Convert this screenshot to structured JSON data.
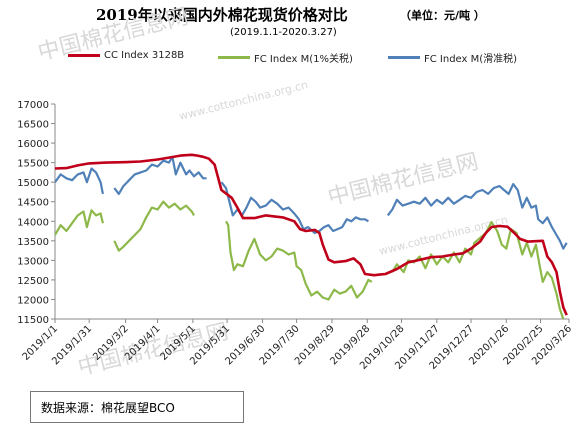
{
  "header": {
    "title": "2019年以来国内外棉花现货价格对比",
    "unit": "（单位：元/吨 ）",
    "subtitle": "(2019.1.1-2020.3.27)"
  },
  "footer": {
    "source": "数据来源：棉花展望BCO"
  },
  "watermark": {
    "text": "中国棉花信息网",
    "url": "www.cottonchina.org.cn"
  },
  "chart_data": {
    "type": "line",
    "ylim": [
      11500,
      17000
    ],
    "yticks": [
      "11500",
      "12000",
      "12500",
      "13000",
      "13500",
      "14000",
      "14500",
      "15000",
      "15500",
      "16000",
      "16500",
      "17000"
    ],
    "xlim": [
      0,
      451
    ],
    "xtick_positions": [
      0,
      30,
      62,
      90,
      121,
      151,
      182,
      212,
      243,
      274,
      304,
      335,
      365,
      396,
      426,
      451
    ],
    "xtick_labels": [
      "2019/1/1",
      "2019/1/31",
      "2019/3/2",
      "2019/4/1",
      "2019/5/1",
      "2019/5/31",
      "2019/6/30",
      "2019/7/30",
      "2019/8/29",
      "2019/9/28",
      "2019/10/28",
      "2019/11/27",
      "2019/12/27",
      "2020/1/26",
      "2020/2/25",
      "2020/3/26"
    ],
    "grid": false,
    "legend_position": "top",
    "series": [
      {
        "name": "CC Index 3128B",
        "color": "#c0001a",
        "segments": [
          [
            [
              0,
              15350
            ],
            [
              10,
              15360
            ],
            [
              20,
              15430
            ],
            [
              30,
              15480
            ],
            [
              45,
              15500
            ],
            [
              60,
              15510
            ],
            [
              75,
              15530
            ],
            [
              90,
              15580
            ],
            [
              100,
              15630
            ],
            [
              110,
              15680
            ],
            [
              120,
              15700
            ],
            [
              125,
              15680
            ],
            [
              130,
              15650
            ],
            [
              135,
              15600
            ],
            [
              140,
              15450
            ],
            [
              146,
              14800
            ],
            [
              155,
              14600
            ],
            [
              160,
              14350
            ],
            [
              165,
              14080
            ],
            [
              175,
              14080
            ],
            [
              185,
              14150
            ],
            [
              200,
              14100
            ],
            [
              210,
              14000
            ],
            [
              215,
              13800
            ],
            [
              220,
              13750
            ],
            [
              228,
              13780
            ],
            [
              232,
              13700
            ],
            [
              235,
              13400
            ],
            [
              240,
              13020
            ],
            [
              245,
              12950
            ],
            [
              255,
              12980
            ],
            [
              262,
              13050
            ],
            [
              268,
              12900
            ],
            [
              272,
              12650
            ],
            [
              280,
              12620
            ],
            [
              290,
              12650
            ],
            [
              300,
              12780
            ],
            [
              310,
              12950
            ],
            [
              318,
              13000
            ],
            [
              330,
              13080
            ],
            [
              340,
              13100
            ],
            [
              350,
              13150
            ],
            [
              358,
              13180
            ],
            [
              365,
              13300
            ],
            [
              373,
              13480
            ],
            [
              378,
              13700
            ],
            [
              383,
              13850
            ],
            [
              390,
              13880
            ],
            [
              397,
              13860
            ],
            [
              403,
              13700
            ],
            [
              408,
              13550
            ],
            [
              415,
              13480
            ],
            [
              428,
              13500
            ],
            [
              432,
              13100
            ],
            [
              436,
              12950
            ],
            [
              440,
              12700
            ],
            [
              443,
              12200
            ],
            [
              446,
              11800
            ],
            [
              449,
              11600
            ]
          ]
        ]
      },
      {
        "name": "FC Index M(1%关税)",
        "color": "#8db84a",
        "segments": [
          [
            [
              0,
              13650
            ],
            [
              5,
              13900
            ],
            [
              10,
              13750
            ],
            [
              15,
              13950
            ],
            [
              20,
              14150
            ],
            [
              25,
              14250
            ],
            [
              28,
              13850
            ],
            [
              32,
              14280
            ],
            [
              36,
              14150
            ],
            [
              40,
              14200
            ],
            [
              42,
              13950
            ]
          ],
          [
            [
              52,
              13500
            ],
            [
              56,
              13250
            ],
            [
              60,
              13350
            ],
            [
              65,
              13500
            ],
            [
              70,
              13650
            ],
            [
              75,
              13800
            ],
            [
              80,
              14100
            ],
            [
              85,
              14350
            ],
            [
              90,
              14300
            ],
            [
              95,
              14500
            ],
            [
              100,
              14350
            ],
            [
              105,
              14450
            ],
            [
              110,
              14300
            ],
            [
              115,
              14400
            ],
            [
              120,
              14250
            ],
            [
              122,
              14150
            ]
          ],
          [
            [
              150,
              14000
            ],
            [
              152,
              13900
            ],
            [
              154,
              13200
            ],
            [
              157,
              12750
            ],
            [
              160,
              12900
            ],
            [
              165,
              12850
            ],
            [
              170,
              13250
            ],
            [
              175,
              13550
            ],
            [
              180,
              13150
            ],
            [
              185,
              13000
            ],
            [
              190,
              13100
            ],
            [
              195,
              13300
            ],
            [
              200,
              13250
            ],
            [
              205,
              13150
            ],
            [
              210,
              13200
            ],
            [
              212,
              12850
            ],
            [
              216,
              12750
            ],
            [
              220,
              12400
            ],
            [
              225,
              12100
            ],
            [
              230,
              12200
            ],
            [
              235,
              12050
            ],
            [
              240,
              12000
            ],
            [
              245,
              12250
            ],
            [
              250,
              12150
            ],
            [
              255,
              12200
            ],
            [
              260,
              12350
            ],
            [
              265,
              12050
            ],
            [
              270,
              12200
            ],
            [
              275,
              12500
            ],
            [
              278,
              12450
            ]
          ],
          [
            [
              296,
              12700
            ],
            [
              300,
              12900
            ],
            [
              306,
              12700
            ],
            [
              310,
              13000
            ],
            [
              315,
              12950
            ],
            [
              320,
              13100
            ],
            [
              325,
              12800
            ],
            [
              330,
              13150
            ],
            [
              335,
              12900
            ],
            [
              340,
              13100
            ],
            [
              345,
              12950
            ],
            [
              350,
              13200
            ],
            [
              355,
              12950
            ],
            [
              360,
              13300
            ],
            [
              365,
              13150
            ],
            [
              368,
              13450
            ],
            [
              372,
              13550
            ],
            [
              378,
              13700
            ],
            [
              383,
              13980
            ],
            [
              388,
              13750
            ],
            [
              392,
              13400
            ],
            [
              396,
              13300
            ],
            [
              400,
              13800
            ],
            [
              405,
              13700
            ],
            [
              410,
              13150
            ],
            [
              414,
              13450
            ],
            [
              418,
              13100
            ],
            [
              422,
              13400
            ],
            [
              425,
              12900
            ],
            [
              428,
              12450
            ],
            [
              432,
              12700
            ],
            [
              436,
              12550
            ],
            [
              440,
              12150
            ],
            [
              443,
              11750
            ],
            [
              446,
              11500
            ]
          ]
        ]
      },
      {
        "name": "FC Index M(滑准税)",
        "color": "#5080b8",
        "segments": [
          [
            [
              0,
              15000
            ],
            [
              5,
              15200
            ],
            [
              10,
              15100
            ],
            [
              15,
              15050
            ],
            [
              20,
              15200
            ],
            [
              25,
              15250
            ],
            [
              28,
              15000
            ],
            [
              32,
              15350
            ],
            [
              36,
              15250
            ],
            [
              40,
              15000
            ],
            [
              42,
              14700
            ]
          ],
          [
            [
              52,
              14850
            ],
            [
              56,
              14700
            ],
            [
              60,
              14900
            ],
            [
              65,
              15050
            ],
            [
              70,
              15200
            ],
            [
              75,
              15250
            ],
            [
              80,
              15300
            ],
            [
              85,
              15450
            ],
            [
              90,
              15400
            ],
            [
              95,
              15550
            ],
            [
              100,
              15500
            ],
            [
              103,
              15650
            ],
            [
              106,
              15200
            ],
            [
              110,
              15500
            ],
            [
              115,
              15200
            ],
            [
              118,
              15300
            ],
            [
              122,
              15150
            ],
            [
              126,
              15250
            ],
            [
              130,
              15100
            ],
            [
              133,
              15100
            ]
          ],
          [
            [
              146,
              15000
            ],
            [
              150,
              14850
            ],
            [
              153,
              14500
            ],
            [
              156,
              14150
            ],
            [
              160,
              14300
            ],
            [
              164,
              14150
            ],
            [
              168,
              14350
            ],
            [
              172,
              14600
            ],
            [
              176,
              14500
            ],
            [
              180,
              14350
            ],
            [
              185,
              14400
            ],
            [
              190,
              14550
            ],
            [
              195,
              14450
            ],
            [
              200,
              14300
            ],
            [
              205,
              14350
            ],
            [
              210,
              14200
            ],
            [
              214,
              14050
            ],
            [
              218,
              13800
            ],
            [
              222,
              13850
            ],
            [
              228,
              13700
            ],
            [
              232,
              13750
            ],
            [
              236,
              13850
            ],
            [
              240,
              13900
            ],
            [
              244,
              13750
            ],
            [
              248,
              13800
            ],
            [
              252,
              13850
            ],
            [
              256,
              14050
            ],
            [
              260,
              14000
            ],
            [
              264,
              14100
            ],
            [
              268,
              14050
            ],
            [
              272,
              14050
            ],
            [
              275,
              14000
            ]
          ],
          [
            [
              292,
              14150
            ],
            [
              296,
              14300
            ],
            [
              300,
              14550
            ],
            [
              305,
              14400
            ],
            [
              310,
              14450
            ],
            [
              315,
              14500
            ],
            [
              320,
              14450
            ],
            [
              325,
              14600
            ],
            [
              330,
              14400
            ],
            [
              335,
              14550
            ],
            [
              340,
              14450
            ],
            [
              345,
              14600
            ],
            [
              350,
              14450
            ],
            [
              355,
              14550
            ],
            [
              360,
              14650
            ],
            [
              365,
              14600
            ],
            [
              370,
              14750
            ],
            [
              375,
              14800
            ],
            [
              380,
              14700
            ],
            [
              385,
              14850
            ],
            [
              390,
              14900
            ],
            [
              394,
              14800
            ],
            [
              398,
              14700
            ],
            [
              402,
              14950
            ],
            [
              406,
              14800
            ],
            [
              410,
              14350
            ],
            [
              414,
              14600
            ],
            [
              418,
              14350
            ],
            [
              422,
              14400
            ],
            [
              424,
              14050
            ],
            [
              428,
              13950
            ],
            [
              432,
              14100
            ],
            [
              436,
              13850
            ],
            [
              440,
              13650
            ],
            [
              443,
              13500
            ],
            [
              446,
              13300
            ],
            [
              449,
              13450
            ]
          ]
        ]
      }
    ]
  }
}
